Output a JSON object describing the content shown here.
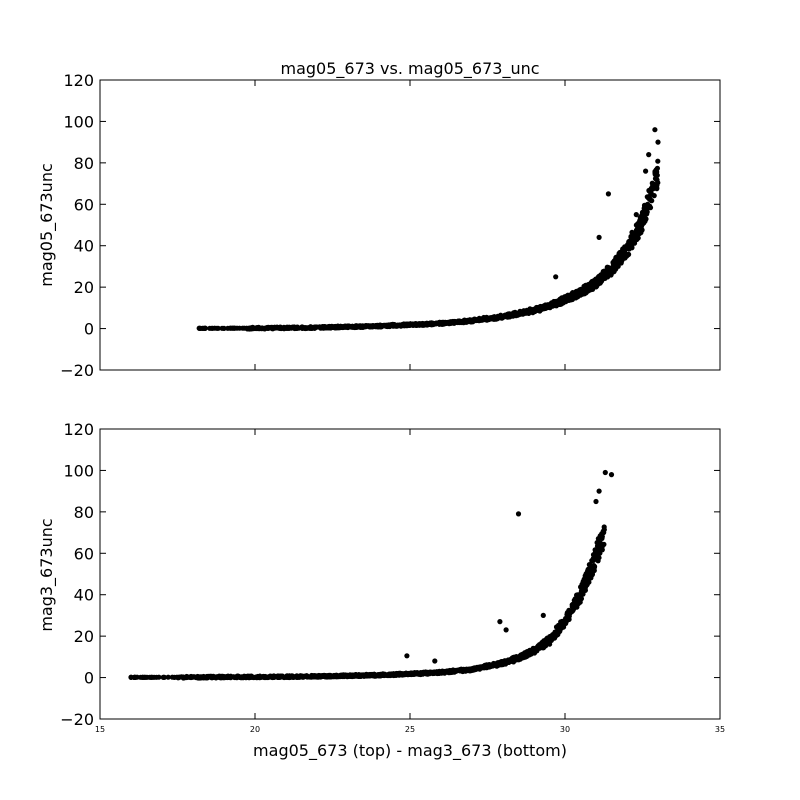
{
  "figure": {
    "title": "mag05_673 vs. mag05_673_unc",
    "xlabel": "mag05_673 (top) - mag3_673 (bottom)"
  },
  "chart_data": [
    {
      "type": "scatter",
      "ylabel": "mag05_673unc",
      "xlim": [
        15,
        35
      ],
      "ylim": [
        -20,
        120
      ],
      "xticks": [],
      "yticks": [
        -20,
        0,
        20,
        40,
        60,
        80,
        100,
        120
      ],
      "ytick_labels": [
        "−20",
        "0",
        "20",
        "40",
        "60",
        "80",
        "100",
        "120"
      ],
      "marker_color": "#000000",
      "curve": {
        "x": [
          18.2,
          20,
          22,
          24,
          26,
          27,
          28,
          29,
          29.5,
          30,
          30.5,
          31,
          31.5,
          32,
          32.5,
          33
        ],
        "y": [
          0.1,
          0.2,
          0.5,
          1.2,
          2.5,
          3.8,
          5.8,
          8.8,
          11,
          14,
          17.5,
          22,
          29,
          38,
          52,
          75
        ]
      },
      "outliers": {
        "x": [
          18.2,
          18.4,
          18.7,
          19.0,
          19.2,
          19.6,
          19.9,
          29.7,
          31.1,
          31.4,
          32.7,
          32.9,
          33.0,
          32.6,
          32.3
        ],
        "y": [
          0.2,
          0.2,
          0.2,
          0.1,
          0.2,
          0.2,
          0.2,
          25,
          44,
          65,
          84,
          96,
          90,
          76,
          55
        ]
      }
    },
    {
      "type": "scatter",
      "ylabel": "mag3_673unc",
      "xlim": [
        15,
        35
      ],
      "ylim": [
        -20,
        120
      ],
      "xticks": [
        15,
        20,
        25,
        30,
        35
      ],
      "xtick_labels": [
        "15",
        "20",
        "25",
        "30",
        "35"
      ],
      "yticks": [
        -20,
        0,
        20,
        40,
        60,
        80,
        100,
        120
      ],
      "ytick_labels": [
        "−20",
        "0",
        "20",
        "40",
        "60",
        "80",
        "100",
        "120"
      ],
      "marker_color": "#000000",
      "curve": {
        "x": [
          16.0,
          18,
          20,
          22,
          24,
          26,
          27,
          28,
          28.5,
          29,
          29.5,
          30,
          30.5,
          31,
          31.3
        ],
        "y": [
          0.1,
          0.2,
          0.3,
          0.6,
          1.2,
          2.5,
          4,
          7,
          9.5,
          13,
          18,
          27,
          40,
          58,
          72
        ]
      },
      "outliers": {
        "x": [
          16.0,
          16.2,
          16.9,
          17.2,
          17.4,
          28.5,
          24.9,
          25.8,
          27.9,
          28.1,
          29.3,
          30.7,
          31.0,
          31.3,
          31.5,
          31.1
        ],
        "y": [
          0.2,
          0.2,
          0.2,
          0.2,
          0.1,
          79,
          10.5,
          8,
          27,
          23,
          30,
          50,
          85,
          99,
          98,
          90
        ]
      }
    }
  ]
}
